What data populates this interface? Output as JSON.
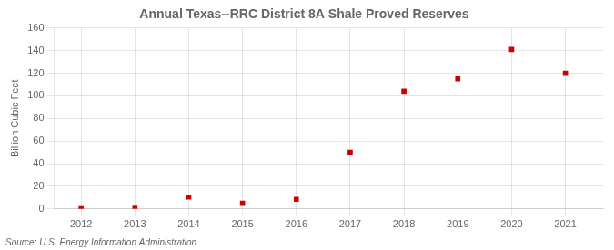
{
  "chart_data": {
    "type": "scatter",
    "title": "Annual Texas--RRC District 8A Shale Proved Reserves",
    "ylabel": "Billion Cubic Feet",
    "annotations": [
      "Source: U.S. Energy Information Administration"
    ],
    "x": [
      2012,
      2013,
      2014,
      2015,
      2016,
      2017,
      2018,
      2019,
      2020,
      2021
    ],
    "values": [
      0.2,
      0.5,
      10.5,
      5.0,
      8.5,
      50.0,
      104.0,
      115.0,
      141.0,
      120.0
    ],
    "color": "#cc0000",
    "marker": "square",
    "xlim": [
      2011.5,
      2021.7
    ],
    "xticks": [
      2012,
      2013,
      2014,
      2015,
      2016,
      2017,
      2018,
      2019,
      2020,
      2021
    ],
    "ylim": [
      0,
      160
    ],
    "yticks": [
      0,
      20,
      40,
      60,
      80,
      100,
      120,
      140,
      160
    ],
    "grid": true
  }
}
